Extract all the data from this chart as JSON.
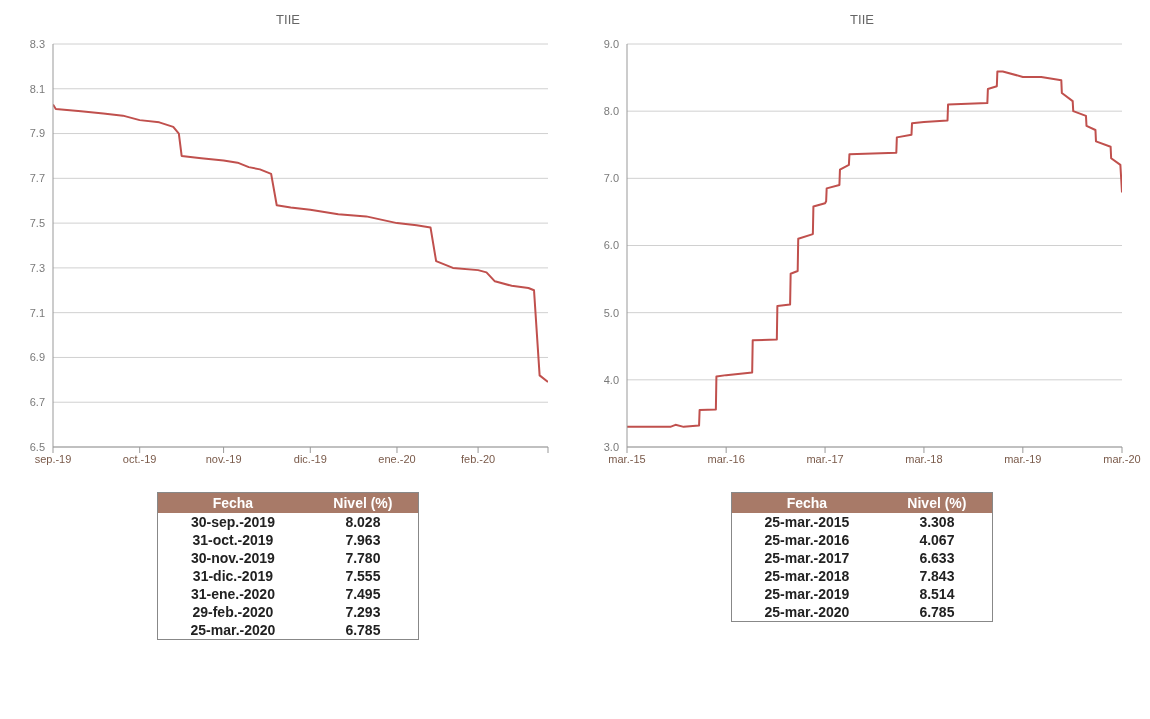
{
  "chart_data": [
    {
      "type": "line",
      "title": "TIIE",
      "color": "#c0504d",
      "marker": "none",
      "grid": "y",
      "xlim": [
        "2019-09-30",
        "2020-03-25"
      ],
      "xticks": [
        {
          "value": "2019-09-30",
          "label": "sep.-19"
        },
        {
          "value": "2019-10-31",
          "label": "oct.-19"
        },
        {
          "value": "2019-11-30",
          "label": "nov.-19"
        },
        {
          "value": "2019-12-31",
          "label": "dic.-19"
        },
        {
          "value": "2020-01-31",
          "label": "ene.-20"
        },
        {
          "value": "2020-02-29",
          "label": "feb.-20"
        },
        {
          "value": "2020-03-25",
          "label": null
        }
      ],
      "ylim": [
        6.5,
        8.3
      ],
      "yticks": [
        6.5,
        6.7,
        6.9,
        7.1,
        7.3,
        7.5,
        7.7,
        7.9,
        8.1,
        8.3
      ],
      "x": [
        "2019-09-30",
        "2019-10-01",
        "2019-10-10",
        "2019-10-18",
        "2019-10-25",
        "2019-10-31",
        "2019-11-07",
        "2019-11-12",
        "2019-11-14",
        "2019-11-15",
        "2019-11-22",
        "2019-11-30",
        "2019-12-05",
        "2019-12-09",
        "2019-12-13",
        "2019-12-17",
        "2019-12-19",
        "2019-12-24",
        "2019-12-31",
        "2020-01-10",
        "2020-01-20",
        "2020-01-31",
        "2020-02-07",
        "2020-02-12",
        "2020-02-14",
        "2020-02-20",
        "2020-02-29",
        "2020-03-03",
        "2020-03-06",
        "2020-03-12",
        "2020-03-18",
        "2020-03-20",
        "2020-03-22",
        "2020-03-25"
      ],
      "values": [
        8.03,
        8.01,
        8.0,
        7.99,
        7.98,
        7.96,
        7.95,
        7.93,
        7.9,
        7.8,
        7.79,
        7.78,
        7.77,
        7.75,
        7.74,
        7.72,
        7.58,
        7.57,
        7.56,
        7.54,
        7.53,
        7.5,
        7.49,
        7.48,
        7.33,
        7.3,
        7.29,
        7.28,
        7.24,
        7.22,
        7.21,
        7.2,
        6.82,
        6.79
      ],
      "annotations": [
        "Fecha",
        "Nivel (%)",
        "30-sep.-2019",
        "8.028",
        "31-oct.-2019",
        "7.963",
        "30-nov.-2019",
        "7.780",
        "31-dic.-2019",
        "7.555",
        "31-ene.-2020",
        "7.495",
        "29-feb.-2020",
        "7.293",
        "25-mar.-2020",
        "6.785"
      ]
    },
    {
      "type": "line",
      "title": "TIIE",
      "color": "#c0504d",
      "marker": "none",
      "grid": "y",
      "xlim": [
        "2015-03-25",
        "2020-03-25"
      ],
      "xticks": [
        {
          "value": "2015-03-25",
          "label": "mar.-15"
        },
        {
          "value": "2016-03-25",
          "label": "mar.-16"
        },
        {
          "value": "2017-03-25",
          "label": "mar.-17"
        },
        {
          "value": "2018-03-25",
          "label": "mar.-18"
        },
        {
          "value": "2019-03-25",
          "label": "mar.-19"
        },
        {
          "value": "2020-03-25",
          "label": "mar.-20"
        }
      ],
      "ylim": [
        3,
        9
      ],
      "yticks": [
        {
          "value": 3,
          "label": "3.0"
        },
        {
          "value": 4,
          "label": "4.0"
        },
        {
          "value": 5,
          "label": "5.0"
        },
        {
          "value": 6,
          "label": "6.0"
        },
        {
          "value": 7,
          "label": "7.0"
        },
        {
          "value": 8,
          "label": "8.0"
        },
        {
          "value": 9,
          "label": "9.0"
        }
      ],
      "x": [
        "2015-03-25",
        "2015-06-15",
        "2015-09-01",
        "2015-09-20",
        "2015-10-20",
        "2015-12-16",
        "2015-12-18",
        "2016-02-16",
        "2016-02-18",
        "2016-03-25",
        "2016-06-29",
        "2016-07-01",
        "2016-09-28",
        "2016-09-30",
        "2016-11-16",
        "2016-11-18",
        "2016-12-14",
        "2016-12-16",
        "2017-02-08",
        "2017-02-10",
        "2017-03-25",
        "2017-03-29",
        "2017-03-31",
        "2017-05-17",
        "2017-05-19",
        "2017-06-21",
        "2017-06-23",
        "2017-12-13",
        "2017-12-15",
        "2018-02-07",
        "2018-02-09",
        "2018-03-25",
        "2018-06-20",
        "2018-06-22",
        "2018-11-14",
        "2018-11-16",
        "2018-12-19",
        "2018-12-21",
        "2019-01-10",
        "2019-03-25",
        "2019-06-01",
        "2019-08-14",
        "2019-08-16",
        "2019-09-25",
        "2019-09-27",
        "2019-11-13",
        "2019-11-15",
        "2019-12-18",
        "2019-12-20",
        "2020-02-12",
        "2020-02-14",
        "2020-03-19",
        "2020-03-25"
      ],
      "values": [
        3.3,
        3.3,
        3.3,
        3.33,
        3.3,
        3.32,
        3.55,
        3.56,
        4.05,
        4.07,
        4.11,
        4.59,
        4.6,
        5.1,
        5.12,
        5.58,
        5.62,
        6.1,
        6.17,
        6.58,
        6.63,
        6.66,
        6.85,
        6.9,
        7.13,
        7.2,
        7.36,
        7.38,
        7.61,
        7.65,
        7.82,
        7.84,
        7.86,
        8.1,
        8.12,
        8.33,
        8.37,
        8.59,
        8.59,
        8.51,
        8.51,
        8.46,
        8.27,
        8.15,
        8.0,
        7.93,
        7.78,
        7.72,
        7.55,
        7.47,
        7.3,
        7.2,
        6.79
      ],
      "annotations": [
        "Fecha",
        "Nivel (%)",
        "25-mar.-2015",
        "3.308",
        "25-mar.-2016",
        "4.067",
        "25-mar.-2017",
        "6.633",
        "25-mar.-2018",
        "7.843",
        "25-mar.-2019",
        "8.514",
        "25-mar.-2020",
        "6.785"
      ]
    }
  ]
}
